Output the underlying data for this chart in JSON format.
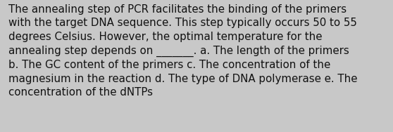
{
  "wrapped_lines": [
    "The annealing step of PCR facilitates the binding of the primers",
    "with the target DNA sequence. This step typically occurs 50 to 55",
    "degrees Celsius. However, the optimal temperature for the",
    "annealing step depends on _______. a. The length of the primers",
    "b. The GC content of the primers c. The concentration of the",
    "magnesium in the reaction d. The type of DNA polymerase e. The",
    "concentration of the dNTPs"
  ],
  "background_color": "#c8c8c8",
  "text_color": "#111111",
  "font_size": 10.8,
  "fig_width": 5.58,
  "fig_height": 1.88,
  "dpi": 100
}
